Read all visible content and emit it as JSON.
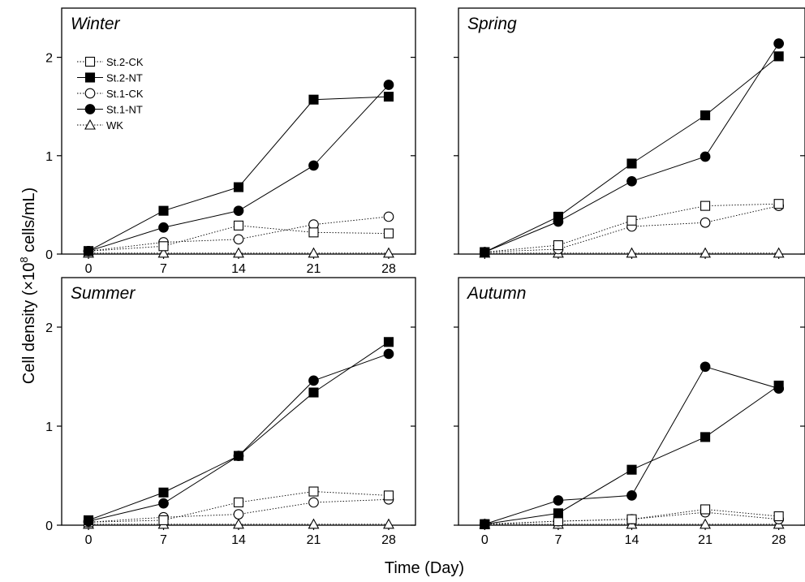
{
  "figure": {
    "ylabel_main": "Cell density (×10",
    "ylabel_sup": "8",
    "ylabel_tail": " cells/mL)",
    "xlabel": "Time (Day)"
  },
  "styles": {
    "St.2-CK": {
      "marker": "square",
      "filled": false,
      "line": "dotted"
    },
    "St.2-NT": {
      "marker": "square",
      "filled": true,
      "line": "solid"
    },
    "St.1-CK": {
      "marker": "circle",
      "filled": false,
      "line": "dotted"
    },
    "St.1-NT": {
      "marker": "circle",
      "filled": true,
      "line": "solid"
    },
    "WK": {
      "marker": "triangle",
      "filled": false,
      "line": "dotted"
    }
  },
  "legend": {
    "entries": [
      "St.2-CK",
      "St.2-NT",
      "St.1-CK",
      "St.1-NT",
      "WK"
    ]
  },
  "chart_data": [
    {
      "type": "line",
      "title": "Winter",
      "xlabel": "Time (Day)",
      "ylabel": "Cell density (×10^8 cells/mL)",
      "xticks": [
        0,
        7,
        14,
        21,
        28
      ],
      "yticks": [
        0,
        1,
        2
      ],
      "xlim": [
        -2.5,
        30.5
      ],
      "ylim": [
        0,
        2.5
      ],
      "show_xticklabels": true,
      "show_yticklabels": true,
      "legend": "top-left",
      "series": [
        {
          "name": "St.2-CK",
          "x": [
            0,
            7,
            14,
            21,
            28
          ],
          "values": [
            0.03,
            0.08,
            0.29,
            0.22,
            0.21
          ]
        },
        {
          "name": "St.2-NT",
          "x": [
            0,
            7,
            14,
            21,
            28
          ],
          "values": [
            0.03,
            0.44,
            0.68,
            1.57,
            1.6
          ]
        },
        {
          "name": "St.1-CK",
          "x": [
            0,
            7,
            14,
            21,
            28
          ],
          "values": [
            0.03,
            0.12,
            0.15,
            0.3,
            0.38
          ]
        },
        {
          "name": "St.1-NT",
          "x": [
            0,
            7,
            14,
            21,
            28
          ],
          "values": [
            0.03,
            0.27,
            0.44,
            0.9,
            1.72
          ]
        },
        {
          "name": "WK",
          "x": [
            0,
            7,
            14,
            21,
            28
          ],
          "values": [
            0.01,
            0.01,
            0.01,
            0.01,
            0.01
          ]
        }
      ]
    },
    {
      "type": "line",
      "title": "Spring",
      "xlabel": "Time (Day)",
      "ylabel": "Cell density (×10^8 cells/mL)",
      "xticks": [
        0,
        7,
        14,
        21,
        28
      ],
      "yticks": [
        0,
        1,
        2
      ],
      "xlim": [
        -2.5,
        30.5
      ],
      "ylim": [
        0,
        2.5
      ],
      "show_xticklabels": false,
      "show_yticklabels": false,
      "series": [
        {
          "name": "St.2-CK",
          "x": [
            0,
            7,
            14,
            21,
            28
          ],
          "values": [
            0.02,
            0.09,
            0.34,
            0.49,
            0.51
          ]
        },
        {
          "name": "St.2-NT",
          "x": [
            0,
            7,
            14,
            21,
            28
          ],
          "values": [
            0.02,
            0.38,
            0.92,
            1.41,
            2.01
          ]
        },
        {
          "name": "St.1-CK",
          "x": [
            0,
            7,
            14,
            21,
            28
          ],
          "values": [
            0.02,
            0.05,
            0.28,
            0.32,
            0.49
          ]
        },
        {
          "name": "St.1-NT",
          "x": [
            0,
            7,
            14,
            21,
            28
          ],
          "values": [
            0.02,
            0.33,
            0.74,
            0.99,
            2.14
          ]
        },
        {
          "name": "WK",
          "x": [
            0,
            7,
            14,
            21,
            28
          ],
          "values": [
            0.01,
            0.01,
            0.01,
            0.01,
            0.01
          ]
        }
      ]
    },
    {
      "type": "line",
      "title": "Summer",
      "xlabel": "Time (Day)",
      "ylabel": "Cell density (×10^8 cells/mL)",
      "xticks": [
        0,
        7,
        14,
        21,
        28
      ],
      "yticks": [
        0,
        1,
        2
      ],
      "xlim": [
        -2.5,
        30.5
      ],
      "ylim": [
        0,
        2.5
      ],
      "show_xticklabels": true,
      "show_yticklabels": true,
      "series": [
        {
          "name": "St.2-CK",
          "x": [
            0,
            7,
            14,
            21,
            28
          ],
          "values": [
            0.03,
            0.05,
            0.23,
            0.34,
            0.3
          ]
        },
        {
          "name": "St.2-NT",
          "x": [
            0,
            7,
            14,
            21,
            28
          ],
          "values": [
            0.05,
            0.33,
            0.7,
            1.34,
            1.85
          ]
        },
        {
          "name": "St.1-CK",
          "x": [
            0,
            7,
            14,
            21,
            28
          ],
          "values": [
            0.03,
            0.08,
            0.11,
            0.23,
            0.26
          ]
        },
        {
          "name": "St.1-NT",
          "x": [
            0,
            7,
            14,
            21,
            28
          ],
          "values": [
            0.04,
            0.22,
            0.7,
            1.46,
            1.73
          ]
        },
        {
          "name": "WK",
          "x": [
            0,
            7,
            14,
            21,
            28
          ],
          "values": [
            0.01,
            0.01,
            0.01,
            0.01,
            0.01
          ]
        }
      ]
    },
    {
      "type": "line",
      "title": "Autumn",
      "xlabel": "Time (Day)",
      "ylabel": "Cell density (×10^8 cells/mL)",
      "xticks": [
        0,
        7,
        14,
        21,
        28
      ],
      "yticks": [
        0,
        1,
        2
      ],
      "xlim": [
        -2.5,
        30.5
      ],
      "ylim": [
        0,
        2.5
      ],
      "show_xticklabels": true,
      "show_yticklabels": false,
      "series": [
        {
          "name": "St.2-CK",
          "x": [
            0,
            7,
            14,
            21,
            28
          ],
          "values": [
            0.01,
            0.04,
            0.06,
            0.16,
            0.09
          ]
        },
        {
          "name": "St.2-NT",
          "x": [
            0,
            7,
            14,
            21,
            28
          ],
          "values": [
            0.01,
            0.12,
            0.56,
            0.89,
            1.41
          ]
        },
        {
          "name": "St.1-CK",
          "x": [
            0,
            7,
            14,
            21,
            28
          ],
          "values": [
            0.01,
            0.04,
            0.06,
            0.13,
            0.06
          ]
        },
        {
          "name": "St.1-NT",
          "x": [
            0,
            7,
            14,
            21,
            28
          ],
          "values": [
            0.01,
            0.25,
            0.3,
            1.6,
            1.38
          ]
        },
        {
          "name": "WK",
          "x": [
            0,
            7,
            14,
            21,
            28
          ],
          "values": [
            0.01,
            0.01,
            0.01,
            0.01,
            0.01
          ]
        }
      ]
    }
  ]
}
